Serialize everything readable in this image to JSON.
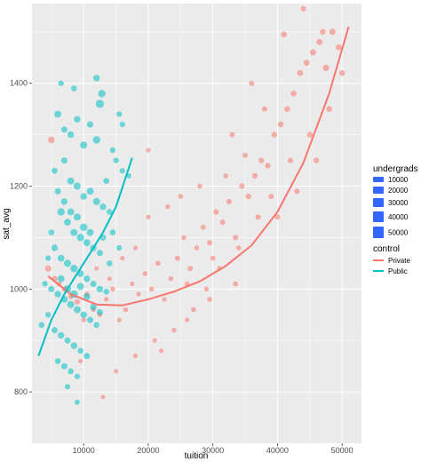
{
  "chart_data": {
    "type": "scatter",
    "xlabel": "tuition",
    "ylabel": "sat_avg",
    "xlim": [
      2000,
      53000
    ],
    "ylim": [
      700,
      1555
    ],
    "x_ticks": [
      10000,
      20000,
      30000,
      40000,
      50000
    ],
    "x_tick_labels": [
      "10000",
      "20000",
      "30000",
      "40000",
      "50000"
    ],
    "y_ticks": [
      800,
      1000,
      1200,
      1400
    ],
    "y_tick_labels": [
      "800",
      "1000",
      "1200",
      "1400"
    ],
    "grid": true,
    "legend_position": "right",
    "size_legend": {
      "title": "undergrads",
      "values": [
        10000,
        20000,
        30000,
        40000,
        50000
      ],
      "labels": [
        "10000",
        "20000",
        "30000",
        "40000",
        "50000"
      ]
    },
    "color_legend": {
      "title": "control",
      "entries": [
        "Private",
        "Public"
      ]
    },
    "colors": {
      "Private": "#F8766D",
      "Public": "#00BFC4",
      "size_key": "#3366FF",
      "panel": "#EBEBEB",
      "grid": "#FFFFFF"
    },
    "series": [
      {
        "name": "Private",
        "points": [
          [
            5000,
            1290,
            6000
          ],
          [
            4500,
            1040,
            5000
          ],
          [
            5500,
            1020,
            3000
          ],
          [
            6200,
            1010,
            2000
          ],
          [
            7000,
            1000,
            2500
          ],
          [
            8000,
            985,
            2000
          ],
          [
            9000,
            975,
            3000
          ],
          [
            10500,
            990,
            2500
          ],
          [
            11500,
            960,
            1500
          ],
          [
            12500,
            950,
            2000
          ],
          [
            13500,
            980,
            1800
          ],
          [
            14500,
            1000,
            2200
          ],
          [
            15500,
            940,
            1500
          ],
          [
            16500,
            960,
            2000
          ],
          [
            17500,
            1010,
            1600
          ],
          [
            18500,
            990,
            1800
          ],
          [
            19500,
            1030,
            2200
          ],
          [
            20500,
            1000,
            2000
          ],
          [
            21500,
            1050,
            2500
          ],
          [
            22500,
            980,
            1800
          ],
          [
            23500,
            1020,
            2000
          ],
          [
            24500,
            1060,
            2600
          ],
          [
            25500,
            1100,
            2200
          ],
          [
            26500,
            1040,
            2800
          ],
          [
            27500,
            1080,
            2000
          ],
          [
            28500,
            1120,
            2400
          ],
          [
            29500,
            1090,
            2600
          ],
          [
            30500,
            1150,
            3000
          ],
          [
            31500,
            1130,
            2800
          ],
          [
            32500,
            1170,
            3200
          ],
          [
            33500,
            1100,
            2600
          ],
          [
            34500,
            1200,
            3000
          ],
          [
            35500,
            1180,
            3400
          ],
          [
            36500,
            1220,
            3200
          ],
          [
            37500,
            1250,
            3000
          ],
          [
            38500,
            1240,
            3600
          ],
          [
            39500,
            1300,
            3400
          ],
          [
            40500,
            1320,
            4000
          ],
          [
            41500,
            1350,
            3800
          ],
          [
            42500,
            1380,
            4200
          ],
          [
            43500,
            1420,
            4000
          ],
          [
            44500,
            1440,
            4500
          ],
          [
            45500,
            1460,
            5000
          ],
          [
            46500,
            1480,
            4800
          ],
          [
            47500,
            1430,
            5200
          ],
          [
            48500,
            1500,
            5500
          ],
          [
            49500,
            1470,
            4600
          ],
          [
            44000,
            1545,
            3000
          ],
          [
            47000,
            1500,
            3500
          ],
          [
            41000,
            1495,
            4200
          ],
          [
            38000,
            1350,
            3000
          ],
          [
            36000,
            1400,
            2800
          ],
          [
            33000,
            1300,
            2600
          ],
          [
            30000,
            1060,
            2400
          ],
          [
            27000,
            960,
            2000
          ],
          [
            24000,
            920,
            1800
          ],
          [
            21000,
            900,
            1600
          ],
          [
            18000,
            870,
            1400
          ],
          [
            15000,
            840,
            1500
          ],
          [
            13000,
            790,
            1200
          ],
          [
            22000,
            880,
            1500
          ],
          [
            26000,
            940,
            1700
          ],
          [
            29000,
            1000,
            1900
          ],
          [
            31000,
            1040,
            2000
          ],
          [
            34000,
            1080,
            2200
          ],
          [
            37000,
            1140,
            2600
          ],
          [
            39000,
            1180,
            2800
          ],
          [
            42000,
            1250,
            3200
          ],
          [
            45000,
            1300,
            3600
          ],
          [
            48000,
            1350,
            4000
          ],
          [
            25000,
            1180,
            2000
          ],
          [
            28000,
            1200,
            2200
          ],
          [
            23000,
            1160,
            1800
          ],
          [
            20000,
            1140,
            1600
          ],
          [
            35000,
            1260,
            2400
          ],
          [
            32000,
            1220,
            2200
          ],
          [
            16000,
            1060,
            1400
          ],
          [
            14000,
            1020,
            1500
          ],
          [
            12000,
            1040,
            1300
          ],
          [
            10000,
            940,
            1400
          ],
          [
            9500,
            860,
            1500
          ],
          [
            18000,
            1080,
            1500
          ],
          [
            26000,
            1010,
            2000
          ],
          [
            29500,
            980,
            2100
          ],
          [
            33500,
            1010,
            2300
          ],
          [
            40000,
            1140,
            2700
          ],
          [
            43000,
            1190,
            3000
          ],
          [
            46000,
            1250,
            3400
          ],
          [
            50000,
            1420,
            4000
          ],
          [
            20000,
            1270,
            1500
          ]
        ]
      },
      {
        "name": "Public",
        "points": [
          [
            6000,
            1340,
            7000
          ],
          [
            7000,
            1310,
            5000
          ],
          [
            8000,
            1300,
            6000
          ],
          [
            9000,
            1330,
            6000
          ],
          [
            10000,
            1280,
            8000
          ],
          [
            11000,
            1320,
            5000
          ],
          [
            12000,
            1290,
            9000
          ],
          [
            12500,
            1360,
            12000
          ],
          [
            12800,
            1380,
            9000
          ],
          [
            8500,
            1390,
            4000
          ],
          [
            7000,
            1250,
            5000
          ],
          [
            8000,
            1210,
            7000
          ],
          [
            9000,
            1200,
            8000
          ],
          [
            10000,
            1180,
            6000
          ],
          [
            11000,
            1190,
            7000
          ],
          [
            12000,
            1170,
            8000
          ],
          [
            13000,
            1160,
            6000
          ],
          [
            6500,
            1150,
            9000
          ],
          [
            7500,
            1130,
            7000
          ],
          [
            8500,
            1110,
            8000
          ],
          [
            9500,
            1100,
            9000
          ],
          [
            10500,
            1090,
            7000
          ],
          [
            11500,
            1080,
            6000
          ],
          [
            12500,
            1070,
            5000
          ],
          [
            5500,
            1080,
            6000
          ],
          [
            6500,
            1060,
            7000
          ],
          [
            7500,
            1050,
            8000
          ],
          [
            8500,
            1040,
            9000
          ],
          [
            9500,
            1030,
            7000
          ],
          [
            10500,
            1020,
            6000
          ],
          [
            11500,
            1010,
            5000
          ],
          [
            12500,
            1000,
            6000
          ],
          [
            5000,
            1000,
            5000
          ],
          [
            6000,
            990,
            6000
          ],
          [
            7000,
            980,
            7000
          ],
          [
            8000,
            970,
            8000
          ],
          [
            9000,
            960,
            7000
          ],
          [
            10000,
            950,
            6000
          ],
          [
            11000,
            940,
            5000
          ],
          [
            12000,
            930,
            4000
          ],
          [
            5500,
            920,
            5000
          ],
          [
            6500,
            910,
            6000
          ],
          [
            7500,
            900,
            5000
          ],
          [
            8500,
            890,
            6000
          ],
          [
            9500,
            880,
            4000
          ],
          [
            10500,
            870,
            5000
          ],
          [
            6000,
            860,
            4000
          ],
          [
            7000,
            850,
            5000
          ],
          [
            8000,
            840,
            4000
          ],
          [
            9000,
            830,
            3000
          ],
          [
            7500,
            810,
            3000
          ],
          [
            9000,
            780,
            2500
          ],
          [
            3500,
            930,
            4000
          ],
          [
            4500,
            950,
            3500
          ],
          [
            13500,
            1210,
            4000
          ],
          [
            14000,
            1150,
            3500
          ],
          [
            15000,
            1250,
            3000
          ],
          [
            16000,
            1230,
            3000
          ],
          [
            17000,
            1220,
            2500
          ],
          [
            14500,
            1110,
            4000
          ],
          [
            15500,
            1080,
            3000
          ],
          [
            12000,
            1410,
            6000
          ],
          [
            6500,
            1400,
            3000
          ],
          [
            5500,
            1230,
            4000
          ],
          [
            6000,
            1190,
            5000
          ],
          [
            7000,
            1170,
            6000
          ],
          [
            8000,
            1150,
            7000
          ],
          [
            9000,
            1140,
            8000
          ],
          [
            10000,
            1120,
            9000
          ],
          [
            11000,
            1110,
            7000
          ],
          [
            13000,
            1100,
            5000
          ],
          [
            14000,
            1050,
            4000
          ],
          [
            5000,
            1110,
            4000
          ],
          [
            4500,
            1060,
            3000
          ],
          [
            4000,
            1010,
            3000
          ],
          [
            6500,
            1020,
            8000
          ],
          [
            7500,
            1000,
            9000
          ],
          [
            8500,
            990,
            10000
          ],
          [
            9500,
            1005,
            8000
          ],
          [
            10500,
            985,
            7000
          ],
          [
            11500,
            965,
            6000
          ],
          [
            12500,
            955,
            5000
          ],
          [
            13500,
            995,
            4000
          ],
          [
            16000,
            1320,
            3000
          ],
          [
            15500,
            1340,
            3000
          ],
          [
            14500,
            1270,
            3500
          ]
        ]
      }
    ],
    "fits": [
      {
        "name": "Private",
        "x": [
          4500,
          8000,
          12000,
          16000,
          20000,
          24000,
          28000,
          32000,
          36000,
          40000,
          44000,
          48000,
          51000
        ],
        "y": [
          1025,
          990,
          970,
          968,
          980,
          995,
          1015,
          1045,
          1085,
          1150,
          1245,
          1380,
          1510
        ]
      },
      {
        "name": "Public",
        "x": [
          3000,
          5000,
          7000,
          9000,
          11000,
          13000,
          15000,
          17500
        ],
        "y": [
          870,
          940,
          990,
          1030,
          1070,
          1110,
          1160,
          1255
        ]
      }
    ]
  }
}
